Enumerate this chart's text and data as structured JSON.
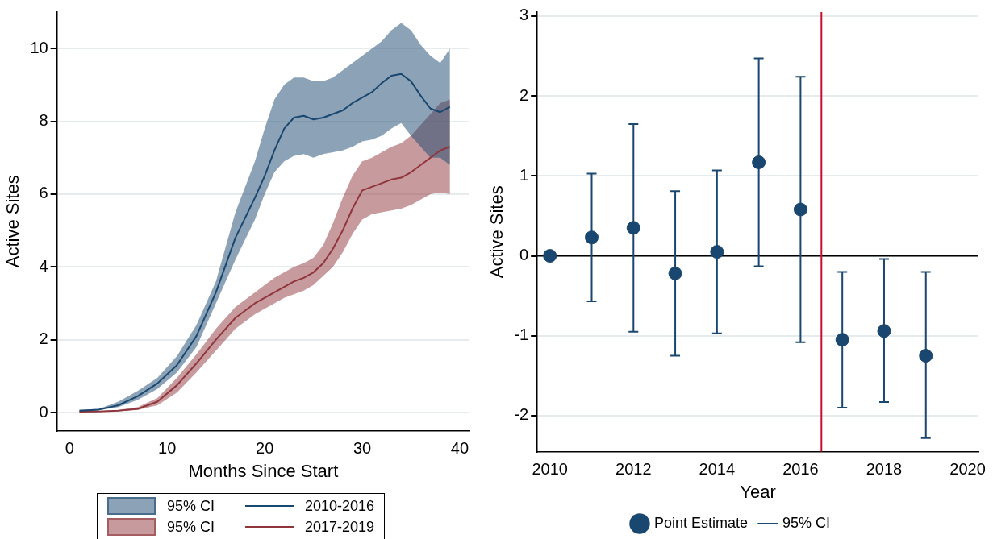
{
  "chart_data": [
    {
      "type": "line",
      "xlabel": "Months Since Start",
      "ylabel": "Active Sites",
      "xlim": [
        -1.3,
        41
      ],
      "ylim": [
        -0.5,
        11
      ],
      "xticks": [
        0,
        10,
        20,
        30,
        40
      ],
      "yticks": [
        0,
        2,
        4,
        6,
        8,
        10
      ],
      "grid": "y",
      "legend": "bottom",
      "marker": "none",
      "line_style": "solid",
      "annotations": [
        "95% CI",
        "95% CI"
      ],
      "series": [
        {
          "name": "2010-2016",
          "color": "#1a476f",
          "x": [
            1,
            3,
            5,
            7,
            9,
            11,
            13,
            15,
            17,
            19,
            20,
            21,
            22,
            23,
            24,
            25,
            26,
            27,
            28,
            29,
            30,
            31,
            32,
            33,
            34,
            35,
            36,
            37,
            38,
            39
          ],
          "values": [
            0.05,
            0.08,
            0.2,
            0.45,
            0.8,
            1.3,
            2.1,
            3.3,
            4.8,
            5.9,
            6.5,
            7.2,
            7.8,
            8.1,
            8.15,
            8.05,
            8.1,
            8.2,
            8.3,
            8.5,
            8.65,
            8.8,
            9.05,
            9.25,
            9.3,
            9.1,
            8.7,
            8.35,
            8.25,
            8.4
          ],
          "lower": [
            0.03,
            0.06,
            0.15,
            0.35,
            0.65,
            1.1,
            1.8,
            3.0,
            4.2,
            5.3,
            6.0,
            6.6,
            6.9,
            7.05,
            7.1,
            7.0,
            7.1,
            7.15,
            7.2,
            7.3,
            7.45,
            7.5,
            7.6,
            7.8,
            7.95,
            7.6,
            7.3,
            7.0,
            7.0,
            6.8
          ],
          "upper": [
            0.07,
            0.1,
            0.3,
            0.6,
            0.95,
            1.55,
            2.4,
            3.6,
            5.5,
            6.9,
            7.8,
            8.6,
            9.0,
            9.2,
            9.2,
            9.1,
            9.1,
            9.2,
            9.4,
            9.6,
            9.8,
            10.0,
            10.2,
            10.5,
            10.7,
            10.5,
            10.1,
            9.8,
            9.6,
            10.0
          ]
        },
        {
          "name": "2017-2019",
          "color": "#90353b",
          "x": [
            1,
            3,
            5,
            7,
            9,
            11,
            13,
            15,
            17,
            19,
            20,
            21,
            22,
            23,
            24,
            25,
            26,
            27,
            28,
            29,
            30,
            31,
            32,
            33,
            34,
            35,
            36,
            37,
            38,
            39
          ],
          "values": [
            0.02,
            0.03,
            0.05,
            0.1,
            0.3,
            0.75,
            1.35,
            2.0,
            2.6,
            3.0,
            3.15,
            3.3,
            3.45,
            3.6,
            3.7,
            3.85,
            4.1,
            4.5,
            5.0,
            5.6,
            6.1,
            6.2,
            6.3,
            6.4,
            6.45,
            6.6,
            6.8,
            7.0,
            7.2,
            7.3
          ],
          "lower": [
            0.01,
            0.02,
            0.04,
            0.07,
            0.2,
            0.55,
            1.1,
            1.7,
            2.3,
            2.7,
            2.85,
            3.0,
            3.15,
            3.25,
            3.35,
            3.5,
            3.75,
            4.0,
            4.4,
            4.9,
            5.3,
            5.45,
            5.5,
            5.55,
            5.6,
            5.7,
            5.85,
            6.0,
            6.05,
            6.0
          ],
          "upper": [
            0.03,
            0.04,
            0.07,
            0.15,
            0.4,
            0.95,
            1.6,
            2.3,
            2.9,
            3.3,
            3.5,
            3.7,
            3.85,
            4.0,
            4.1,
            4.25,
            4.6,
            5.2,
            5.9,
            6.5,
            6.9,
            7.0,
            7.15,
            7.3,
            7.4,
            7.6,
            7.9,
            8.2,
            8.5,
            8.6
          ]
        }
      ]
    },
    {
      "type": "scatter",
      "xlabel": "Year",
      "ylabel": "Active Sites",
      "xlim": [
        2009.7,
        2020.26
      ],
      "ylim": [
        -2.45,
        3.05
      ],
      "xticks": [
        2010,
        2012,
        2014,
        2016,
        2018,
        2020
      ],
      "yticks": [
        -2,
        -1,
        0,
        1,
        2,
        3
      ],
      "grid": "y",
      "legend": "bottom",
      "marker": "circle",
      "annotations": [
        "95% CI"
      ],
      "ref_lines": [
        {
          "axis": "y",
          "value": 0,
          "color": "#000000"
        },
        {
          "axis": "x",
          "value": 2016.5,
          "color": "#c8102e"
        }
      ],
      "series": [
        {
          "name": "Point Estimate",
          "color": "#1a476f",
          "x": [
            2010,
            2011,
            2012,
            2013,
            2014,
            2015,
            2016,
            2017,
            2018,
            2019
          ],
          "values": [
            0,
            0.23,
            0.35,
            -0.22,
            0.05,
            1.17,
            0.58,
            -1.05,
            -0.94,
            -1.25
          ],
          "errors": [
            null,
            [
              -0.57,
              1.03
            ],
            [
              -0.95,
              1.65
            ],
            [
              -1.25,
              0.81
            ],
            [
              -0.97,
              1.07
            ],
            [
              -0.13,
              2.47
            ],
            [
              -1.08,
              2.24
            ],
            [
              -1.9,
              -0.2
            ],
            [
              -1.83,
              -0.04
            ],
            [
              -2.28,
              -0.2
            ]
          ]
        }
      ]
    }
  ]
}
